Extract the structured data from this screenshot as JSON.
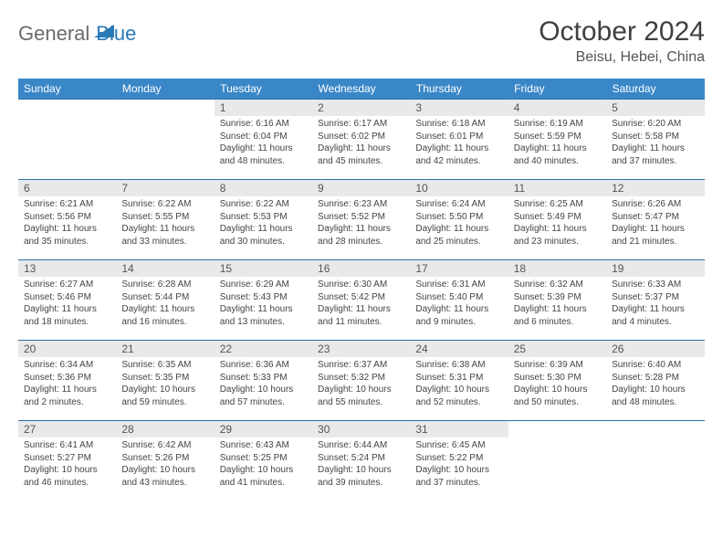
{
  "logo": {
    "general": "General",
    "blue": "Blue"
  },
  "title": "October 2024",
  "location": "Beisu, Hebei, China",
  "colors": {
    "header_bg": "#3a87c8",
    "header_text": "#ffffff",
    "daynum_bg": "#e8e9ea",
    "border": "#2f6fa3",
    "logo_gray": "#6a6a6a",
    "logo_blue": "#2a7ab8"
  },
  "dayHeaders": [
    "Sunday",
    "Monday",
    "Tuesday",
    "Wednesday",
    "Thursday",
    "Friday",
    "Saturday"
  ],
  "weeks": [
    [
      {
        "n": "",
        "sr": "",
        "ss": "",
        "dl": ""
      },
      {
        "n": "",
        "sr": "",
        "ss": "",
        "dl": ""
      },
      {
        "n": "1",
        "sr": "Sunrise: 6:16 AM",
        "ss": "Sunset: 6:04 PM",
        "dl": "Daylight: 11 hours and 48 minutes."
      },
      {
        "n": "2",
        "sr": "Sunrise: 6:17 AM",
        "ss": "Sunset: 6:02 PM",
        "dl": "Daylight: 11 hours and 45 minutes."
      },
      {
        "n": "3",
        "sr": "Sunrise: 6:18 AM",
        "ss": "Sunset: 6:01 PM",
        "dl": "Daylight: 11 hours and 42 minutes."
      },
      {
        "n": "4",
        "sr": "Sunrise: 6:19 AM",
        "ss": "Sunset: 5:59 PM",
        "dl": "Daylight: 11 hours and 40 minutes."
      },
      {
        "n": "5",
        "sr": "Sunrise: 6:20 AM",
        "ss": "Sunset: 5:58 PM",
        "dl": "Daylight: 11 hours and 37 minutes."
      }
    ],
    [
      {
        "n": "6",
        "sr": "Sunrise: 6:21 AM",
        "ss": "Sunset: 5:56 PM",
        "dl": "Daylight: 11 hours and 35 minutes."
      },
      {
        "n": "7",
        "sr": "Sunrise: 6:22 AM",
        "ss": "Sunset: 5:55 PM",
        "dl": "Daylight: 11 hours and 33 minutes."
      },
      {
        "n": "8",
        "sr": "Sunrise: 6:22 AM",
        "ss": "Sunset: 5:53 PM",
        "dl": "Daylight: 11 hours and 30 minutes."
      },
      {
        "n": "9",
        "sr": "Sunrise: 6:23 AM",
        "ss": "Sunset: 5:52 PM",
        "dl": "Daylight: 11 hours and 28 minutes."
      },
      {
        "n": "10",
        "sr": "Sunrise: 6:24 AM",
        "ss": "Sunset: 5:50 PM",
        "dl": "Daylight: 11 hours and 25 minutes."
      },
      {
        "n": "11",
        "sr": "Sunrise: 6:25 AM",
        "ss": "Sunset: 5:49 PM",
        "dl": "Daylight: 11 hours and 23 minutes."
      },
      {
        "n": "12",
        "sr": "Sunrise: 6:26 AM",
        "ss": "Sunset: 5:47 PM",
        "dl": "Daylight: 11 hours and 21 minutes."
      }
    ],
    [
      {
        "n": "13",
        "sr": "Sunrise: 6:27 AM",
        "ss": "Sunset: 5:46 PM",
        "dl": "Daylight: 11 hours and 18 minutes."
      },
      {
        "n": "14",
        "sr": "Sunrise: 6:28 AM",
        "ss": "Sunset: 5:44 PM",
        "dl": "Daylight: 11 hours and 16 minutes."
      },
      {
        "n": "15",
        "sr": "Sunrise: 6:29 AM",
        "ss": "Sunset: 5:43 PM",
        "dl": "Daylight: 11 hours and 13 minutes."
      },
      {
        "n": "16",
        "sr": "Sunrise: 6:30 AM",
        "ss": "Sunset: 5:42 PM",
        "dl": "Daylight: 11 hours and 11 minutes."
      },
      {
        "n": "17",
        "sr": "Sunrise: 6:31 AM",
        "ss": "Sunset: 5:40 PM",
        "dl": "Daylight: 11 hours and 9 minutes."
      },
      {
        "n": "18",
        "sr": "Sunrise: 6:32 AM",
        "ss": "Sunset: 5:39 PM",
        "dl": "Daylight: 11 hours and 6 minutes."
      },
      {
        "n": "19",
        "sr": "Sunrise: 6:33 AM",
        "ss": "Sunset: 5:37 PM",
        "dl": "Daylight: 11 hours and 4 minutes."
      }
    ],
    [
      {
        "n": "20",
        "sr": "Sunrise: 6:34 AM",
        "ss": "Sunset: 5:36 PM",
        "dl": "Daylight: 11 hours and 2 minutes."
      },
      {
        "n": "21",
        "sr": "Sunrise: 6:35 AM",
        "ss": "Sunset: 5:35 PM",
        "dl": "Daylight: 10 hours and 59 minutes."
      },
      {
        "n": "22",
        "sr": "Sunrise: 6:36 AM",
        "ss": "Sunset: 5:33 PM",
        "dl": "Daylight: 10 hours and 57 minutes."
      },
      {
        "n": "23",
        "sr": "Sunrise: 6:37 AM",
        "ss": "Sunset: 5:32 PM",
        "dl": "Daylight: 10 hours and 55 minutes."
      },
      {
        "n": "24",
        "sr": "Sunrise: 6:38 AM",
        "ss": "Sunset: 5:31 PM",
        "dl": "Daylight: 10 hours and 52 minutes."
      },
      {
        "n": "25",
        "sr": "Sunrise: 6:39 AM",
        "ss": "Sunset: 5:30 PM",
        "dl": "Daylight: 10 hours and 50 minutes."
      },
      {
        "n": "26",
        "sr": "Sunrise: 6:40 AM",
        "ss": "Sunset: 5:28 PM",
        "dl": "Daylight: 10 hours and 48 minutes."
      }
    ],
    [
      {
        "n": "27",
        "sr": "Sunrise: 6:41 AM",
        "ss": "Sunset: 5:27 PM",
        "dl": "Daylight: 10 hours and 46 minutes."
      },
      {
        "n": "28",
        "sr": "Sunrise: 6:42 AM",
        "ss": "Sunset: 5:26 PM",
        "dl": "Daylight: 10 hours and 43 minutes."
      },
      {
        "n": "29",
        "sr": "Sunrise: 6:43 AM",
        "ss": "Sunset: 5:25 PM",
        "dl": "Daylight: 10 hours and 41 minutes."
      },
      {
        "n": "30",
        "sr": "Sunrise: 6:44 AM",
        "ss": "Sunset: 5:24 PM",
        "dl": "Daylight: 10 hours and 39 minutes."
      },
      {
        "n": "31",
        "sr": "Sunrise: 6:45 AM",
        "ss": "Sunset: 5:22 PM",
        "dl": "Daylight: 10 hours and 37 minutes."
      },
      {
        "n": "",
        "sr": "",
        "ss": "",
        "dl": ""
      },
      {
        "n": "",
        "sr": "",
        "ss": "",
        "dl": ""
      }
    ]
  ]
}
